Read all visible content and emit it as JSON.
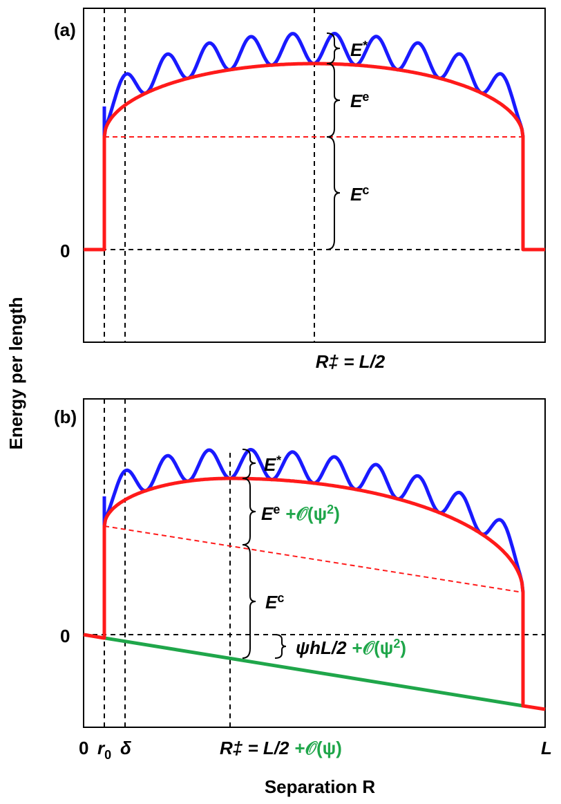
{
  "colors": {
    "energy_curve": "#ff1a1a",
    "oscillating_curve": "#1a1aff",
    "tilt_line": "#1fa64a",
    "guides": "#000000"
  },
  "chart_data": [
    {
      "panel": "(a)",
      "type": "line",
      "xlabel": "Separation R",
      "ylabel": "Energy per length",
      "y_zero_label": "0",
      "x_marker_label": {
        "main": "R‡ = L/2"
      },
      "energy_labels": {
        "barrier_oscillation": {
          "base": "E",
          "sup": "*"
        },
        "elastic": {
          "base": "E",
          "sup": "e"
        },
        "core": {
          "base": "E",
          "sup": "c"
        }
      },
      "series": [
        {
          "name": "total energy (red)",
          "description": "step from 0 at r0 to Ec, dome of height Ee peaking at L/2, step back to 0 near L"
        },
        {
          "name": "oscillating energy (blue)",
          "peaks": 10,
          "amplitude_label": "E*"
        }
      ]
    },
    {
      "panel": "(b)",
      "type": "line",
      "xlabel": "Separation R",
      "ylabel": "Energy per length",
      "y_zero_label": "0",
      "x_ticks": [
        "0",
        "r",
        "0",
        "δ",
        "L"
      ],
      "x_marker_label": {
        "main": "R‡ = L/2",
        "correction": "+𝒪(ψ)"
      },
      "energy_labels": {
        "barrier_oscillation": {
          "base": "E",
          "sup": "*"
        },
        "elastic": {
          "base": "E",
          "sup": "e",
          "correction": "+𝒪(ψ",
          "correction_sup": "2",
          "correction_close": ")"
        },
        "core": {
          "base": "E",
          "sup": "c"
        },
        "tilt": {
          "main": "ψhL/2",
          "correction": "+𝒪(ψ",
          "correction_sup": "2",
          "correction_close": ")"
        }
      },
      "series": [
        {
          "name": "total energy (red)",
          "description": "tilted dome, peak shifted left of L/2"
        },
        {
          "name": "oscillating energy (blue)",
          "peaks": 10,
          "amplitude_label": "E*"
        },
        {
          "name": "applied work (green)",
          "description": "line from 0 at R=0 decreasing to -ψhL at R=L"
        }
      ]
    }
  ]
}
